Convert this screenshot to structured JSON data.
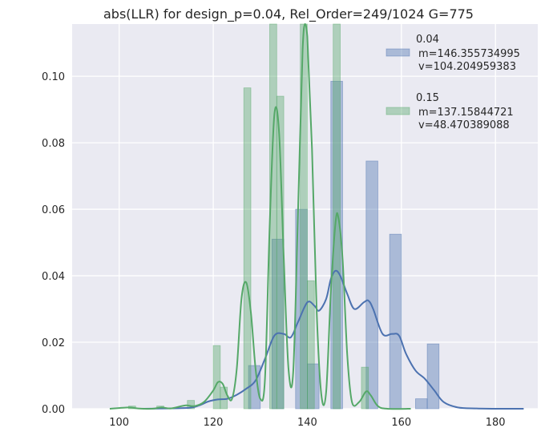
{
  "chart_data": {
    "type": "bar",
    "title": "abs(LLR) for design_p=0.04, Rel_Order=249/1024 G=775",
    "xlabel": "",
    "ylabel": "",
    "xlim": [
      90,
      189
    ],
    "ylim": [
      0,
      0.1157
    ],
    "xticks": [
      "100",
      "120",
      "140",
      "160",
      "180"
    ],
    "yticks": [
      "0.00",
      "0.02",
      "0.04",
      "0.06",
      "0.08",
      "0.10"
    ],
    "grid": true,
    "legend_position": "top-right",
    "series": [
      {
        "name": "0.04",
        "stats": [
          "m=146.355734995",
          "v=104.204959383"
        ],
        "color": "#4c72b0",
        "histogram": [
          {
            "x0": 127.5,
            "x1": 130.0,
            "y": 0.013
          },
          {
            "x0": 132.5,
            "x1": 135.0,
            "y": 0.051
          },
          {
            "x0": 137.5,
            "x1": 140.0,
            "y": 0.06
          },
          {
            "x0": 140.0,
            "x1": 142.5,
            "y": 0.0135
          },
          {
            "x0": 145.0,
            "x1": 147.5,
            "y": 0.0985
          },
          {
            "x0": 152.5,
            "x1": 155.0,
            "y": 0.0745
          },
          {
            "x0": 157.5,
            "x1": 160.0,
            "y": 0.0525
          },
          {
            "x0": 163.0,
            "x1": 165.5,
            "y": 0.003
          },
          {
            "x0": 165.5,
            "x1": 168.0,
            "y": 0.0195
          }
        ],
        "kde": [
          [
            105,
            0.0
          ],
          [
            110,
            0.0001
          ],
          [
            115,
            0.0003
          ],
          [
            117,
            0.001
          ],
          [
            119,
            0.0022
          ],
          [
            121,
            0.0028
          ],
          [
            123,
            0.003
          ],
          [
            125,
            0.0042
          ],
          [
            127,
            0.006
          ],
          [
            129,
            0.0085
          ],
          [
            131,
            0.015
          ],
          [
            133,
            0.022
          ],
          [
            135,
            0.0225
          ],
          [
            136.5,
            0.0215
          ],
          [
            138,
            0.026
          ],
          [
            140,
            0.032
          ],
          [
            141.5,
            0.031
          ],
          [
            142.5,
            0.0295
          ],
          [
            144,
            0.033
          ],
          [
            145,
            0.039
          ],
          [
            146,
            0.0415
          ],
          [
            147,
            0.04
          ],
          [
            148.5,
            0.0345
          ],
          [
            150,
            0.03
          ],
          [
            152,
            0.032
          ],
          [
            153,
            0.0325
          ],
          [
            154,
            0.03
          ],
          [
            156,
            0.0225
          ],
          [
            158,
            0.0225
          ],
          [
            159.5,
            0.022
          ],
          [
            161,
            0.0165
          ],
          [
            163,
            0.0115
          ],
          [
            165,
            0.009
          ],
          [
            167,
            0.0055
          ],
          [
            169,
            0.002
          ],
          [
            172,
            0.0004
          ],
          [
            176,
            0.0001
          ],
          [
            181,
            0.0
          ],
          [
            186,
            0.0
          ]
        ]
      },
      {
        "name": "0.15",
        "stats": [
          "m=137.15844721",
          "v=48.470389088"
        ],
        "color": "#55a868",
        "histogram": [
          {
            "x0": 102.0,
            "x1": 103.5,
            "y": 0.0008
          },
          {
            "x0": 108.0,
            "x1": 109.5,
            "y": 0.0008
          },
          {
            "x0": 114.5,
            "x1": 116.0,
            "y": 0.0025
          },
          {
            "x0": 120.0,
            "x1": 121.5,
            "y": 0.019
          },
          {
            "x0": 121.5,
            "x1": 123.0,
            "y": 0.0065
          },
          {
            "x0": 126.5,
            "x1": 128.0,
            "y": 0.0965
          },
          {
            "x0": 132.0,
            "x1": 133.5,
            "y": 0.116
          },
          {
            "x0": 133.5,
            "x1": 135.0,
            "y": 0.094
          },
          {
            "x0": 138.5,
            "x1": 140.0,
            "y": 0.116
          },
          {
            "x0": 140.0,
            "x1": 141.5,
            "y": 0.0385
          },
          {
            "x0": 145.5,
            "x1": 147.0,
            "y": 0.116
          },
          {
            "x0": 151.5,
            "x1": 153.0,
            "y": 0.0125
          }
        ],
        "kde": [
          [
            98,
            0.0
          ],
          [
            102,
            0.0004
          ],
          [
            104,
            0.0001
          ],
          [
            107,
            0.0
          ],
          [
            109,
            0.0004
          ],
          [
            111,
            0.0001
          ],
          [
            114,
            0.001
          ],
          [
            116,
            0.0008
          ],
          [
            118,
            0.002
          ],
          [
            120,
            0.0055
          ],
          [
            121,
            0.008
          ],
          [
            122,
            0.0075
          ],
          [
            123,
            0.004
          ],
          [
            124,
            0.003
          ],
          [
            125,
            0.012
          ],
          [
            126,
            0.033
          ],
          [
            127,
            0.038
          ],
          [
            128,
            0.029
          ],
          [
            129,
            0.012
          ],
          [
            130,
            0.003
          ],
          [
            131,
            0.009
          ],
          [
            132,
            0.055
          ],
          [
            133,
            0.0885
          ],
          [
            134,
            0.083
          ],
          [
            135,
            0.045
          ],
          [
            136,
            0.012
          ],
          [
            137,
            0.011
          ],
          [
            138,
            0.058
          ],
          [
            139,
            0.108
          ],
          [
            139.5,
            0.117
          ],
          [
            140,
            0.112
          ],
          [
            141,
            0.078
          ],
          [
            142,
            0.029
          ],
          [
            143,
            0.004
          ],
          [
            144,
            0.005
          ],
          [
            145,
            0.035
          ],
          [
            146,
            0.056
          ],
          [
            146.6,
            0.0575
          ],
          [
            147.5,
            0.045
          ],
          [
            148.5,
            0.016
          ],
          [
            149.5,
            0.002
          ],
          [
            151,
            0.002
          ],
          [
            152.5,
            0.0052
          ],
          [
            153.5,
            0.004
          ],
          [
            155,
            0.0008
          ],
          [
            157,
            0.0
          ],
          [
            162,
            0.0
          ]
        ]
      }
    ]
  }
}
